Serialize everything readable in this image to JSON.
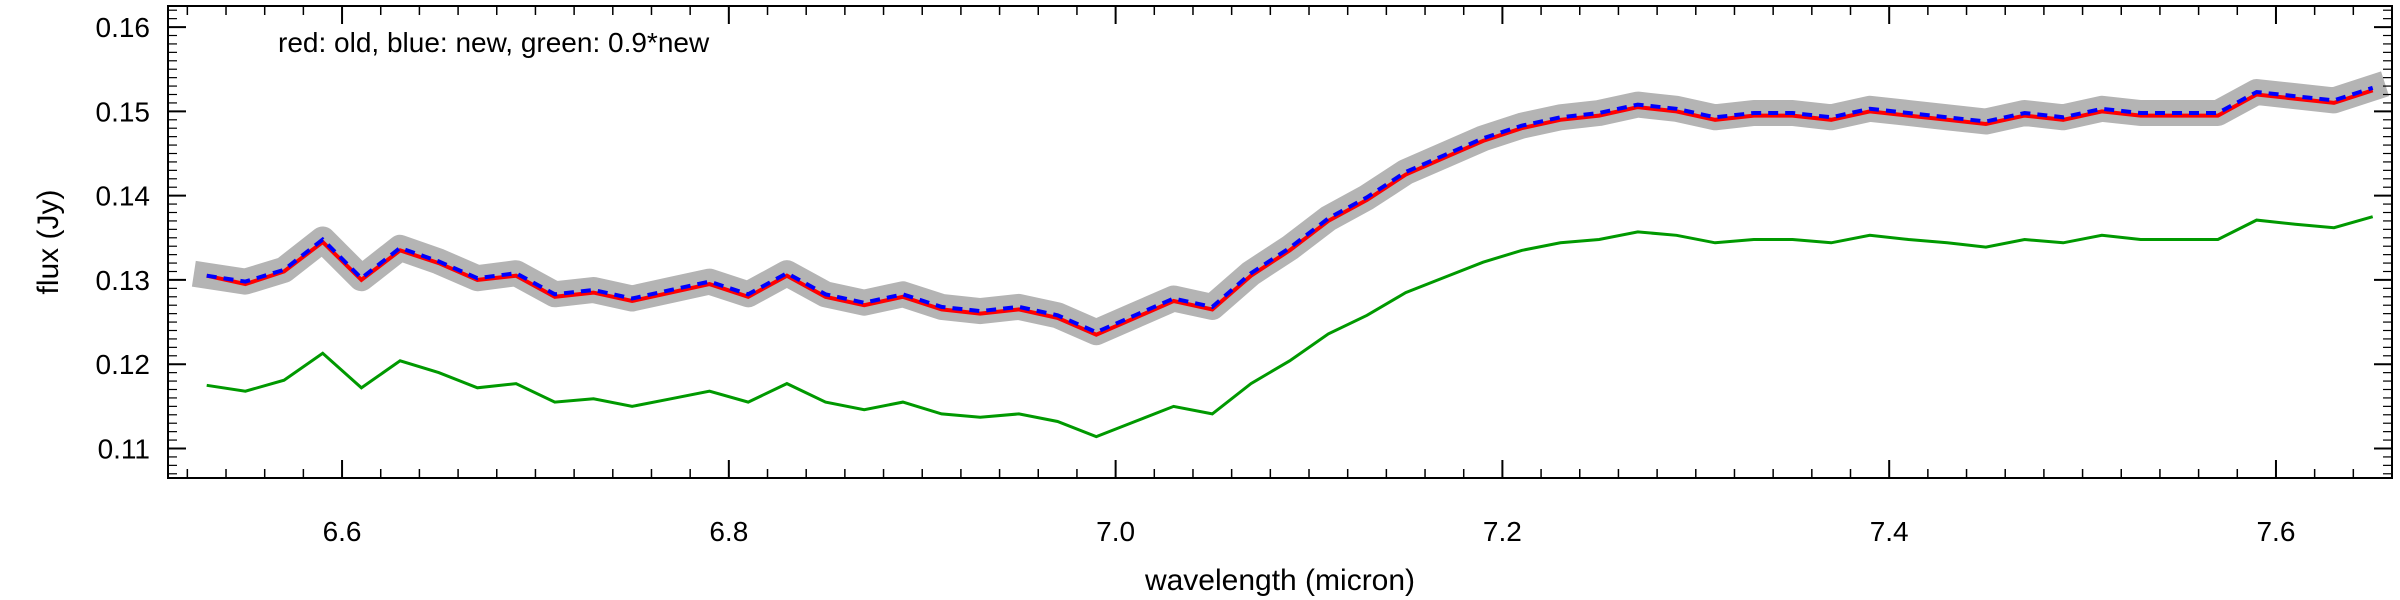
{
  "chart_data": {
    "type": "line",
    "title": "",
    "annotation": "red: old, blue: new, green: 0.9*new",
    "xlabel": "wavelength (micron)",
    "ylabel": "flux (Jy)",
    "xlim": [
      6.51,
      7.66
    ],
    "ylim": [
      0.1065,
      0.1625
    ],
    "xticks": [
      6.6,
      6.8,
      7.0,
      7.2,
      7.4,
      7.6
    ],
    "xtick_labels": [
      "6.6",
      "6.8",
      "7.0",
      "7.2",
      "7.4",
      "7.6"
    ],
    "yticks": [
      0.11,
      0.12,
      0.13,
      0.14,
      0.15,
      0.16
    ],
    "ytick_labels": [
      "0.11",
      "0.12",
      "0.13",
      "0.14",
      "0.15",
      "0.16"
    ],
    "grid": false,
    "colors": {
      "band": "#b4b4b4",
      "old": "#ff0000",
      "new": "#0000ff",
      "scaled": "#009900"
    },
    "series": [
      {
        "key": "old",
        "x": [
          6.53,
          6.55,
          6.57,
          6.59,
          6.61,
          6.63,
          6.65,
          6.67,
          6.69,
          6.71,
          6.73,
          6.75,
          6.77,
          6.79,
          6.81,
          6.83,
          6.85,
          6.87,
          6.89,
          6.91,
          6.93,
          6.95,
          6.97,
          6.99,
          7.01,
          7.03,
          7.05,
          7.07,
          7.09,
          7.11,
          7.13,
          7.15,
          7.17,
          7.19,
          7.21,
          7.23,
          7.25,
          7.27,
          7.29,
          7.31,
          7.33,
          7.35,
          7.37,
          7.39,
          7.41,
          7.43,
          7.45,
          7.47,
          7.49,
          7.51,
          7.53,
          7.55,
          7.57,
          7.59,
          7.61,
          7.63,
          7.65
        ],
        "y": [
          0.1305,
          0.1295,
          0.131,
          0.1345,
          0.13,
          0.1335,
          0.132,
          0.13,
          0.1305,
          0.128,
          0.1285,
          0.1275,
          0.1285,
          0.1295,
          0.128,
          0.1305,
          0.128,
          0.127,
          0.128,
          0.1265,
          0.126,
          0.1265,
          0.1255,
          0.1235,
          0.1255,
          0.1275,
          0.1265,
          0.1305,
          0.1335,
          0.137,
          0.1395,
          0.1425,
          0.1445,
          0.1465,
          0.148,
          0.149,
          0.1495,
          0.1505,
          0.15,
          0.149,
          0.1495,
          0.1495,
          0.149,
          0.15,
          0.1495,
          0.149,
          0.1485,
          0.1495,
          0.149,
          0.15,
          0.1495,
          0.1495,
          0.1495,
          0.152,
          0.1515,
          0.151,
          0.1525
        ]
      },
      {
        "key": "new",
        "x": [
          6.53,
          6.55,
          6.57,
          6.59,
          6.61,
          6.63,
          6.65,
          6.67,
          6.69,
          6.71,
          6.73,
          6.75,
          6.77,
          6.79,
          6.81,
          6.83,
          6.85,
          6.87,
          6.89,
          6.91,
          6.93,
          6.95,
          6.97,
          6.99,
          7.01,
          7.03,
          7.05,
          7.07,
          7.09,
          7.11,
          7.13,
          7.15,
          7.17,
          7.19,
          7.21,
          7.23,
          7.25,
          7.27,
          7.29,
          7.31,
          7.33,
          7.35,
          7.37,
          7.39,
          7.41,
          7.43,
          7.45,
          7.47,
          7.49,
          7.51,
          7.53,
          7.55,
          7.57,
          7.59,
          7.61,
          7.63,
          7.65
        ],
        "y": [
          0.1305,
          0.1298,
          0.1312,
          0.1348,
          0.1302,
          0.1338,
          0.1322,
          0.1302,
          0.1308,
          0.1283,
          0.1288,
          0.1278,
          0.1288,
          0.1298,
          0.1283,
          0.1308,
          0.1283,
          0.1273,
          0.1283,
          0.1268,
          0.1263,
          0.1268,
          0.1258,
          0.1238,
          0.1258,
          0.1278,
          0.1268,
          0.1308,
          0.1338,
          0.1373,
          0.1398,
          0.1428,
          0.1448,
          0.1468,
          0.1483,
          0.1493,
          0.1498,
          0.1508,
          0.1503,
          0.1493,
          0.1498,
          0.1498,
          0.1493,
          0.1503,
          0.1498,
          0.1493,
          0.1488,
          0.1498,
          0.1493,
          0.1503,
          0.1498,
          0.1498,
          0.1498,
          0.1523,
          0.1518,
          0.1513,
          0.1528
        ]
      },
      {
        "key": "scaled",
        "x": [
          6.53,
          6.55,
          6.57,
          6.59,
          6.61,
          6.63,
          6.65,
          6.67,
          6.69,
          6.71,
          6.73,
          6.75,
          6.77,
          6.79,
          6.81,
          6.83,
          6.85,
          6.87,
          6.89,
          6.91,
          6.93,
          6.95,
          6.97,
          6.99,
          7.01,
          7.03,
          7.05,
          7.07,
          7.09,
          7.11,
          7.13,
          7.15,
          7.17,
          7.19,
          7.21,
          7.23,
          7.25,
          7.27,
          7.29,
          7.31,
          7.33,
          7.35,
          7.37,
          7.39,
          7.41,
          7.43,
          7.45,
          7.47,
          7.49,
          7.51,
          7.53,
          7.55,
          7.57,
          7.59,
          7.61,
          7.63,
          7.65
        ],
        "y": [
          0.1175,
          0.1168,
          0.1181,
          0.1213,
          0.1172,
          0.1204,
          0.119,
          0.1172,
          0.1177,
          0.1155,
          0.1159,
          0.115,
          0.1159,
          0.1168,
          0.1155,
          0.1177,
          0.1155,
          0.1146,
          0.1155,
          0.1141,
          0.1137,
          0.1141,
          0.1132,
          0.1114,
          0.1132,
          0.115,
          0.1141,
          0.1177,
          0.1204,
          0.1236,
          0.1258,
          0.1285,
          0.1303,
          0.1321,
          0.1335,
          0.1344,
          0.1348,
          0.1357,
          0.1353,
          0.1344,
          0.1348,
          0.1348,
          0.1344,
          0.1353,
          0.1348,
          0.1344,
          0.1339,
          0.1348,
          0.1344,
          0.1353,
          0.1348,
          0.1348,
          0.1348,
          0.1371,
          0.1366,
          0.1362,
          0.1375
        ]
      }
    ]
  }
}
